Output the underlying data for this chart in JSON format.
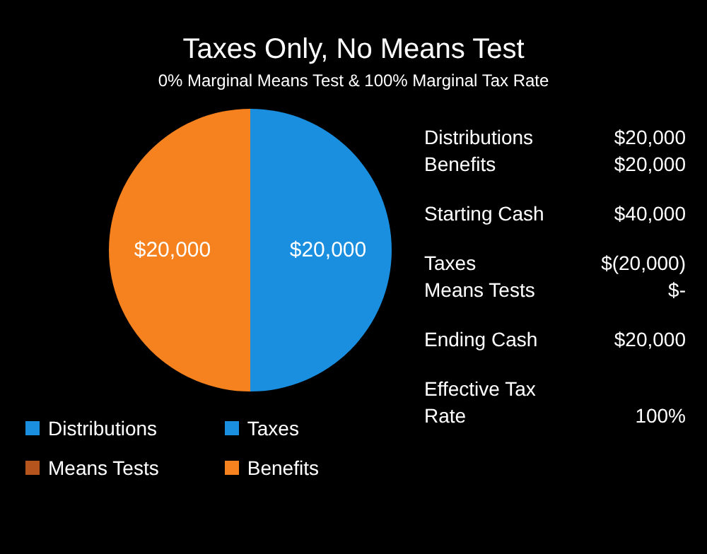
{
  "chart_data": {
    "type": "pie",
    "title": "Taxes Only, No Means Test",
    "subtitle": "0% Marginal Means Test & 100% Marginal Tax Rate",
    "categories": [
      "Distributions",
      "Taxes",
      "Means Tests",
      "Benefits"
    ],
    "values": [
      0,
      20000,
      0,
      20000
    ],
    "colors": [
      "#1a8fe0",
      "#1a8fe0",
      "#b5541c",
      "#f5821f"
    ],
    "value_labels": [
      null,
      "$20,000",
      null,
      "$20,000"
    ],
    "legend": "bottom left",
    "annotations": [
      "Distributions",
      "$20,000",
      "Benefits",
      "$20,000",
      "Starting Cash",
      "$40,000",
      "Taxes",
      "$(20,000)",
      "Means Tests",
      "$-",
      "Ending Cash",
      "$20,000",
      "Effective Tax Rate",
      "100%"
    ]
  }
}
